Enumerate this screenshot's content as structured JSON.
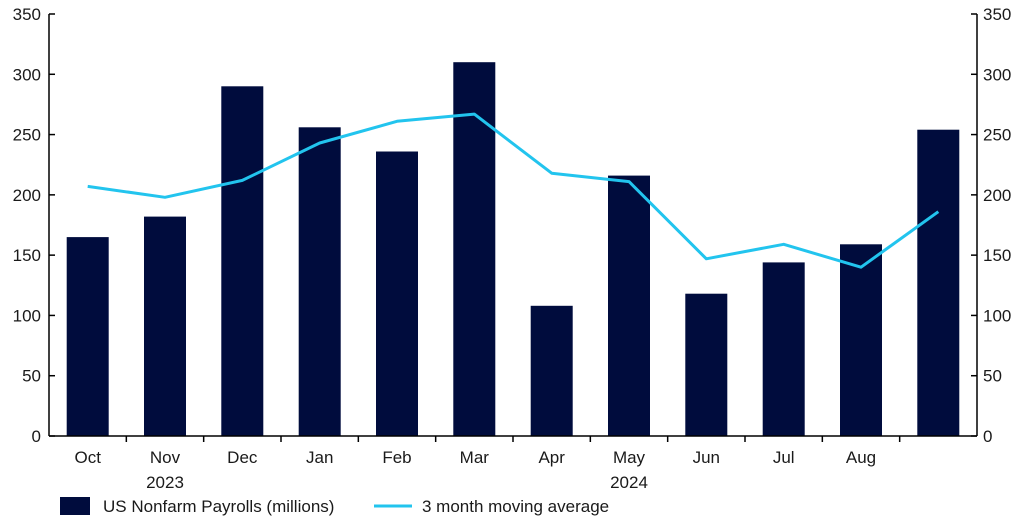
{
  "chart_data": {
    "type": "bar",
    "categories": [
      "Oct",
      "Nov",
      "Dec",
      "Jan",
      "Feb",
      "Mar",
      "Apr",
      "May",
      "Jun",
      "Jul",
      "Aug",
      ""
    ],
    "year_labels": [
      {
        "label": "2023",
        "category_index": 1
      },
      {
        "label": "2024",
        "category_index": 7
      }
    ],
    "series": [
      {
        "name": "US Nonfarm Payrolls (millions)",
        "type": "bar",
        "color": "#000c3d",
        "values": [
          165,
          182,
          290,
          256,
          236,
          310,
          108,
          216,
          118,
          144,
          159,
          254
        ]
      },
      {
        "name": "3 month moving average",
        "type": "line",
        "color": "#22c4ee",
        "values": [
          207,
          198,
          212,
          243,
          261,
          267,
          218,
          211,
          147,
          159,
          140,
          186
        ]
      }
    ],
    "ylim": [
      0,
      350
    ],
    "yticks": [
      0,
      50,
      100,
      150,
      200,
      250,
      300,
      350
    ],
    "y_axis_left": true,
    "y_axis_right": true,
    "grid": false,
    "legend_position": "bottom-left",
    "title": "",
    "xlabel": "",
    "ylabel": ""
  }
}
